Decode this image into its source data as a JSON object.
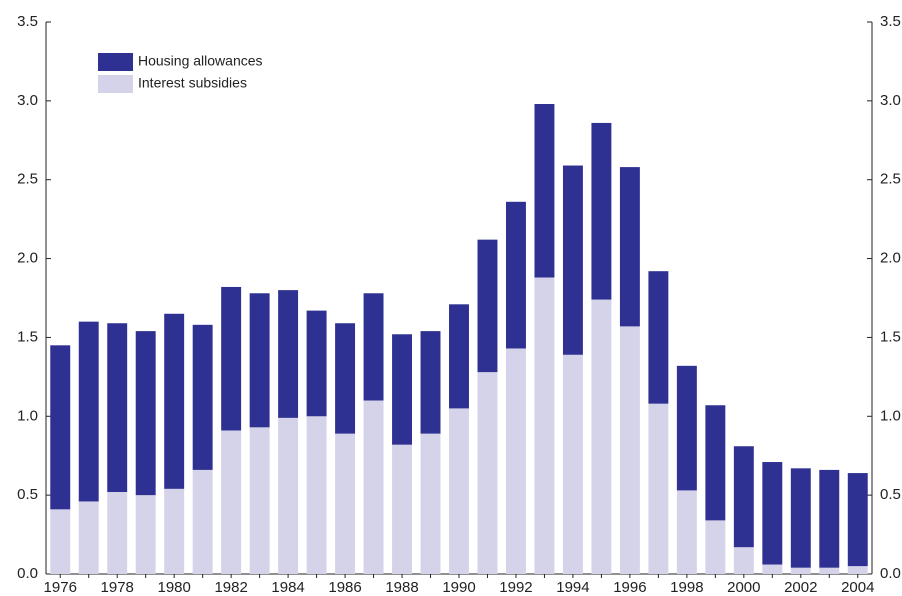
{
  "chart_data": {
    "type": "stacked-bar",
    "categories": [
      "1976",
      null,
      "1978",
      null,
      "1980",
      null,
      "1982",
      null,
      "1984",
      null,
      "1986",
      null,
      "1988",
      null,
      "1990",
      null,
      "1992",
      null,
      "1994",
      null,
      "1996",
      null,
      "1998",
      null,
      "2000",
      null,
      "2002",
      null,
      "2004"
    ],
    "series": [
      {
        "name": "Interest subsidies",
        "color": "#d4d3e9",
        "values": [
          0.41,
          0.46,
          0.52,
          0.5,
          0.54,
          0.66,
          0.91,
          0.93,
          0.99,
          1.0,
          0.89,
          1.1,
          0.82,
          0.89,
          1.05,
          1.28,
          1.43,
          1.88,
          1.39,
          1.74,
          1.57,
          1.08,
          0.53,
          0.34,
          0.17,
          0.06,
          0.04,
          0.04,
          0.05
        ]
      },
      {
        "name": "Housing allowances",
        "color": "#2e3192",
        "values": [
          1.04,
          1.14,
          1.07,
          1.04,
          1.11,
          0.92,
          0.91,
          0.85,
          0.81,
          0.67,
          0.7,
          0.68,
          0.7,
          0.65,
          0.66,
          0.84,
          0.93,
          1.1,
          1.2,
          1.12,
          1.01,
          0.84,
          0.79,
          0.73,
          0.64,
          0.65,
          0.63,
          0.62,
          0.59
        ]
      }
    ],
    "ylim": [
      0,
      3.5
    ],
    "yticks": [
      {
        "value": 0,
        "label": "0.0"
      },
      0.5,
      {
        "value": 1,
        "label": "1.0"
      },
      1.5,
      {
        "value": 2,
        "label": "2.0"
      },
      2.5,
      {
        "value": 3,
        "label": "3.0"
      },
      3.5
    ],
    "y2lim": [
      0,
      3.5
    ],
    "y2ticks": [
      {
        "value": 0,
        "label": "0.0"
      },
      0.5,
      {
        "value": 1,
        "label": "1.0"
      },
      1.5,
      {
        "value": 2,
        "label": "2.0"
      },
      2.5,
      {
        "value": 3,
        "label": "3.0"
      },
      3.5
    ],
    "legend": "top-left",
    "grid": false
  }
}
